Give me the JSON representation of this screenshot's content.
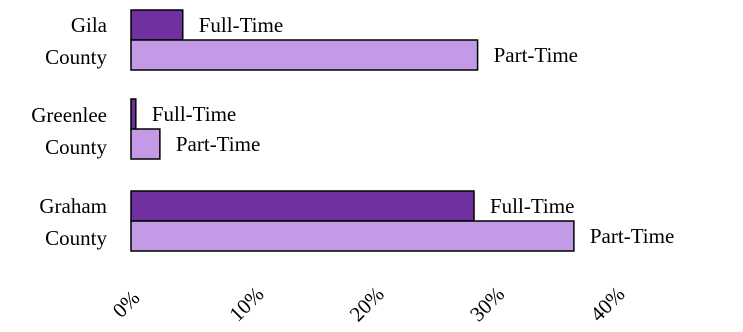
{
  "chart_data": {
    "type": "bar",
    "orientation": "horizontal",
    "title": "",
    "xlabel": "",
    "ylabel": "",
    "xlim": [
      0,
      40
    ],
    "x_tick_labels": [
      "0%",
      "10%",
      "20%",
      "30%",
      "40%"
    ],
    "x_tick_values": [
      0,
      10,
      20,
      30,
      40
    ],
    "grid": false,
    "legend": "none (series names shown as inline labels beside bars)",
    "categories": [
      {
        "line1": "Gila",
        "line2": "County"
      },
      {
        "line1": "Greenlee",
        "line2": "County"
      },
      {
        "line1": "Graham",
        "line2": "County"
      }
    ],
    "series": [
      {
        "name": "Full-Time",
        "color": "#7030a0",
        "values": [
          4.3,
          0.4,
          28.5
        ]
      },
      {
        "name": "Part-Time",
        "color": "#c39ae6",
        "values": [
          28.8,
          2.4,
          36.8
        ]
      }
    ],
    "bar_outline_color": "#000000"
  }
}
